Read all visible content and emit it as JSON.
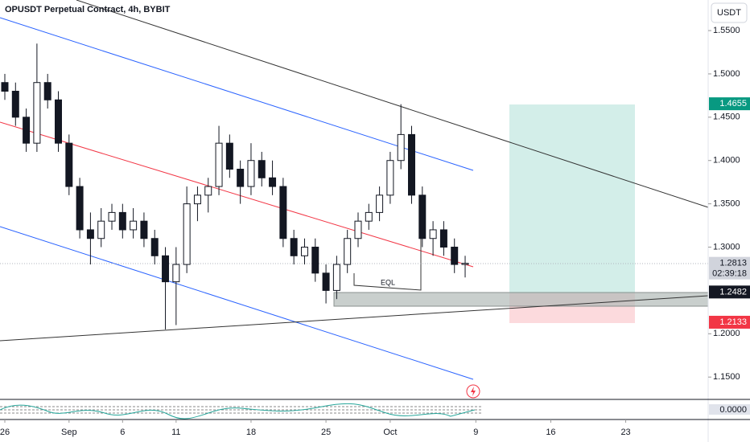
{
  "chart_data": {
    "type": "candlestick",
    "title": "OPUSDT Perpetual Contract, 4h, BYBIT",
    "currency": "USDT",
    "x": [
      0,
      1,
      2,
      3,
      4,
      5,
      6,
      7,
      8,
      9,
      10,
      11,
      12,
      13,
      14,
      15,
      16,
      17,
      18,
      19,
      20,
      21,
      22,
      23,
      24,
      25,
      26,
      27,
      28,
      29,
      30,
      31,
      32,
      33,
      34,
      35,
      36,
      37,
      38,
      39,
      40,
      41,
      42,
      43
    ],
    "open": [
      1.49,
      1.48,
      1.45,
      1.42,
      1.49,
      1.47,
      1.42,
      1.37,
      1.32,
      1.31,
      1.33,
      1.34,
      1.32,
      1.33,
      1.31,
      1.29,
      1.26,
      1.28,
      1.35,
      1.36,
      1.37,
      1.42,
      1.39,
      1.37,
      1.4,
      1.38,
      1.37,
      1.31,
      1.29,
      1.3,
      1.27,
      1.25,
      1.28,
      1.31,
      1.33,
      1.34,
      1.36,
      1.4,
      1.43,
      1.36,
      1.31,
      1.32,
      1.3,
      1.28
    ],
    "high": [
      1.5,
      1.49,
      1.46,
      1.535,
      1.5,
      1.48,
      1.43,
      1.38,
      1.34,
      1.345,
      1.35,
      1.35,
      1.345,
      1.34,
      1.32,
      1.3,
      1.3,
      1.37,
      1.37,
      1.38,
      1.44,
      1.43,
      1.4,
      1.42,
      1.41,
      1.4,
      1.38,
      1.32,
      1.31,
      1.31,
      1.28,
      1.29,
      1.32,
      1.34,
      1.35,
      1.37,
      1.41,
      1.465,
      1.44,
      1.37,
      1.33,
      1.33,
      1.31,
      1.29
    ],
    "low": [
      1.47,
      1.44,
      1.41,
      1.41,
      1.46,
      1.41,
      1.36,
      1.31,
      1.28,
      1.3,
      1.32,
      1.31,
      1.31,
      1.3,
      1.28,
      1.205,
      1.21,
      1.27,
      1.33,
      1.34,
      1.36,
      1.38,
      1.35,
      1.36,
      1.37,
      1.36,
      1.3,
      1.28,
      1.28,
      1.26,
      1.235,
      1.24,
      1.27,
      1.3,
      1.32,
      1.33,
      1.35,
      1.39,
      1.35,
      1.3,
      1.29,
      1.29,
      1.27,
      1.265
    ],
    "close": [
      1.48,
      1.45,
      1.42,
      1.49,
      1.47,
      1.42,
      1.37,
      1.32,
      1.31,
      1.33,
      1.34,
      1.32,
      1.33,
      1.31,
      1.29,
      1.26,
      1.28,
      1.35,
      1.36,
      1.37,
      1.42,
      1.39,
      1.37,
      1.4,
      1.38,
      1.37,
      1.31,
      1.29,
      1.3,
      1.27,
      1.25,
      1.28,
      1.31,
      1.33,
      1.34,
      1.36,
      1.4,
      1.43,
      1.36,
      1.31,
      1.32,
      1.3,
      1.28,
      1.2813
    ],
    "xlim": [
      -0.45,
      65.7
    ],
    "ylim": [
      1.1242,
      1.5853
    ],
    "xticks": [
      {
        "value": 0,
        "label": "26"
      },
      {
        "value": 6,
        "label": "Sep"
      },
      {
        "value": 11,
        "label": "6"
      },
      {
        "value": 16,
        "label": "11"
      },
      {
        "value": 23,
        "label": "18"
      },
      {
        "value": 30,
        "label": "25"
      },
      {
        "value": 36,
        "label": "Oct"
      },
      {
        "value": 44,
        "label": "9"
      },
      {
        "value": 51,
        "label": "16"
      },
      {
        "value": 58,
        "label": "23"
      }
    ],
    "yticks": [
      {
        "value": 1.15,
        "label": "1.1500"
      },
      {
        "value": 1.2,
        "label": "1.2000"
      },
      {
        "value": 1.3,
        "label": "1.3000"
      },
      {
        "value": 1.35,
        "label": "1.3500"
      },
      {
        "value": 1.4,
        "label": "1.4000"
      },
      {
        "value": 1.45,
        "label": "1.4500"
      },
      {
        "value": 1.5,
        "label": "1.5000"
      },
      {
        "value": 1.55,
        "label": "1.5500"
      }
    ],
    "price_badges": [
      {
        "value": 1.4655,
        "color": "#089981"
      },
      {
        "value": 1.2813,
        "color": "#d1d4dc",
        "timer": "02:39:18"
      },
      {
        "value": 1.2482,
        "color": "#131722"
      },
      {
        "value": 1.2133,
        "color": "#f23645"
      }
    ],
    "annotation": "EQL",
    "indicator_label": {
      "value": 0,
      "label": "0.0000"
    }
  }
}
